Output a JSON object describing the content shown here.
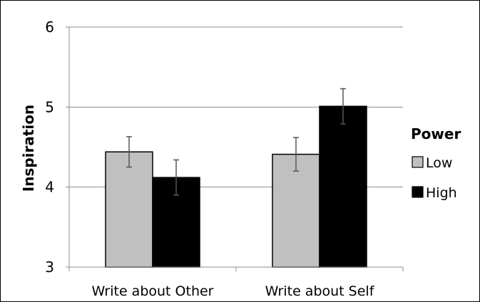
{
  "chart_data": {
    "type": "bar",
    "categories": [
      "Write about Other",
      "Write about Self"
    ],
    "series": [
      {
        "name": "Low",
        "values": [
          4.44,
          4.41
        ],
        "errors": [
          0.19,
          0.21
        ],
        "color": "#c0c0c0"
      },
      {
        "name": "High",
        "values": [
          4.12,
          5.01
        ],
        "errors": [
          0.22,
          0.22
        ],
        "color": "#000000"
      }
    ],
    "ylabel": "Inspiration",
    "ylim": [
      3,
      6
    ],
    "yticks": [
      "3",
      "4",
      "5",
      "6"
    ],
    "legend": {
      "title": "Power",
      "placement": "right"
    },
    "grid": true
  }
}
